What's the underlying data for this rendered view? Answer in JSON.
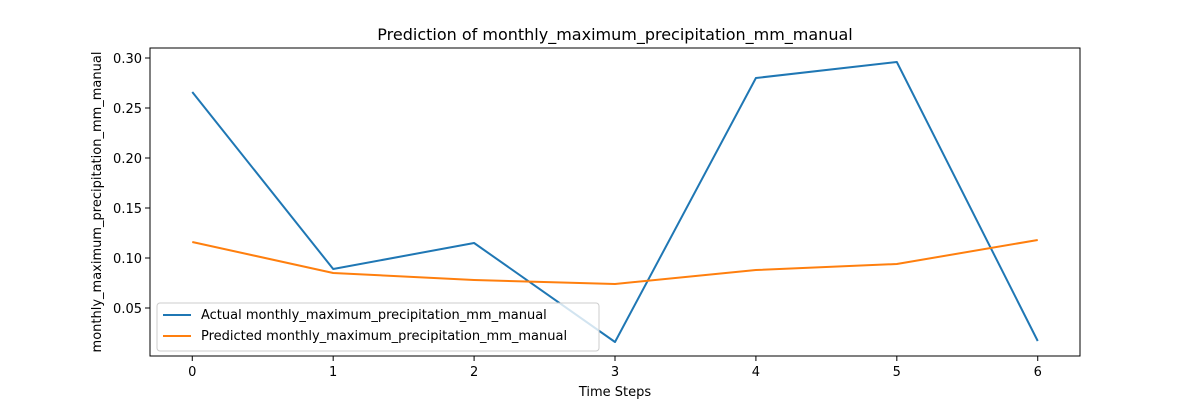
{
  "chart_data": {
    "type": "line",
    "title": "Prediction of monthly_maximum_precipitation_mm_manual",
    "xlabel": "Time Steps",
    "ylabel": "monthly_maximum_precipitation_mm_manual",
    "x": [
      0,
      1,
      2,
      3,
      4,
      5,
      6
    ],
    "x_ticks": [
      "0",
      "1",
      "2",
      "3",
      "4",
      "5",
      "6"
    ],
    "y_ticks": [
      "0.05",
      "0.10",
      "0.15",
      "0.20",
      "0.25",
      "0.30"
    ],
    "y_tick_values": [
      0.05,
      0.1,
      0.15,
      0.2,
      0.25,
      0.3
    ],
    "xlim": [
      -0.3,
      6.3
    ],
    "ylim": [
      0.002,
      0.31
    ],
    "grid": false,
    "legend_placement": "lower-left",
    "series": [
      {
        "name": "Actual monthly_maximum_precipitation_mm_manual",
        "color": "#1f77b4",
        "values": [
          0.266,
          0.089,
          0.115,
          0.016,
          0.28,
          0.296,
          0.017
        ]
      },
      {
        "name": "Predicted monthly_maximum_precipitation_mm_manual",
        "color": "#ff7f0e",
        "values": [
          0.116,
          0.085,
          0.078,
          0.074,
          0.088,
          0.094,
          0.118
        ]
      }
    ]
  }
}
